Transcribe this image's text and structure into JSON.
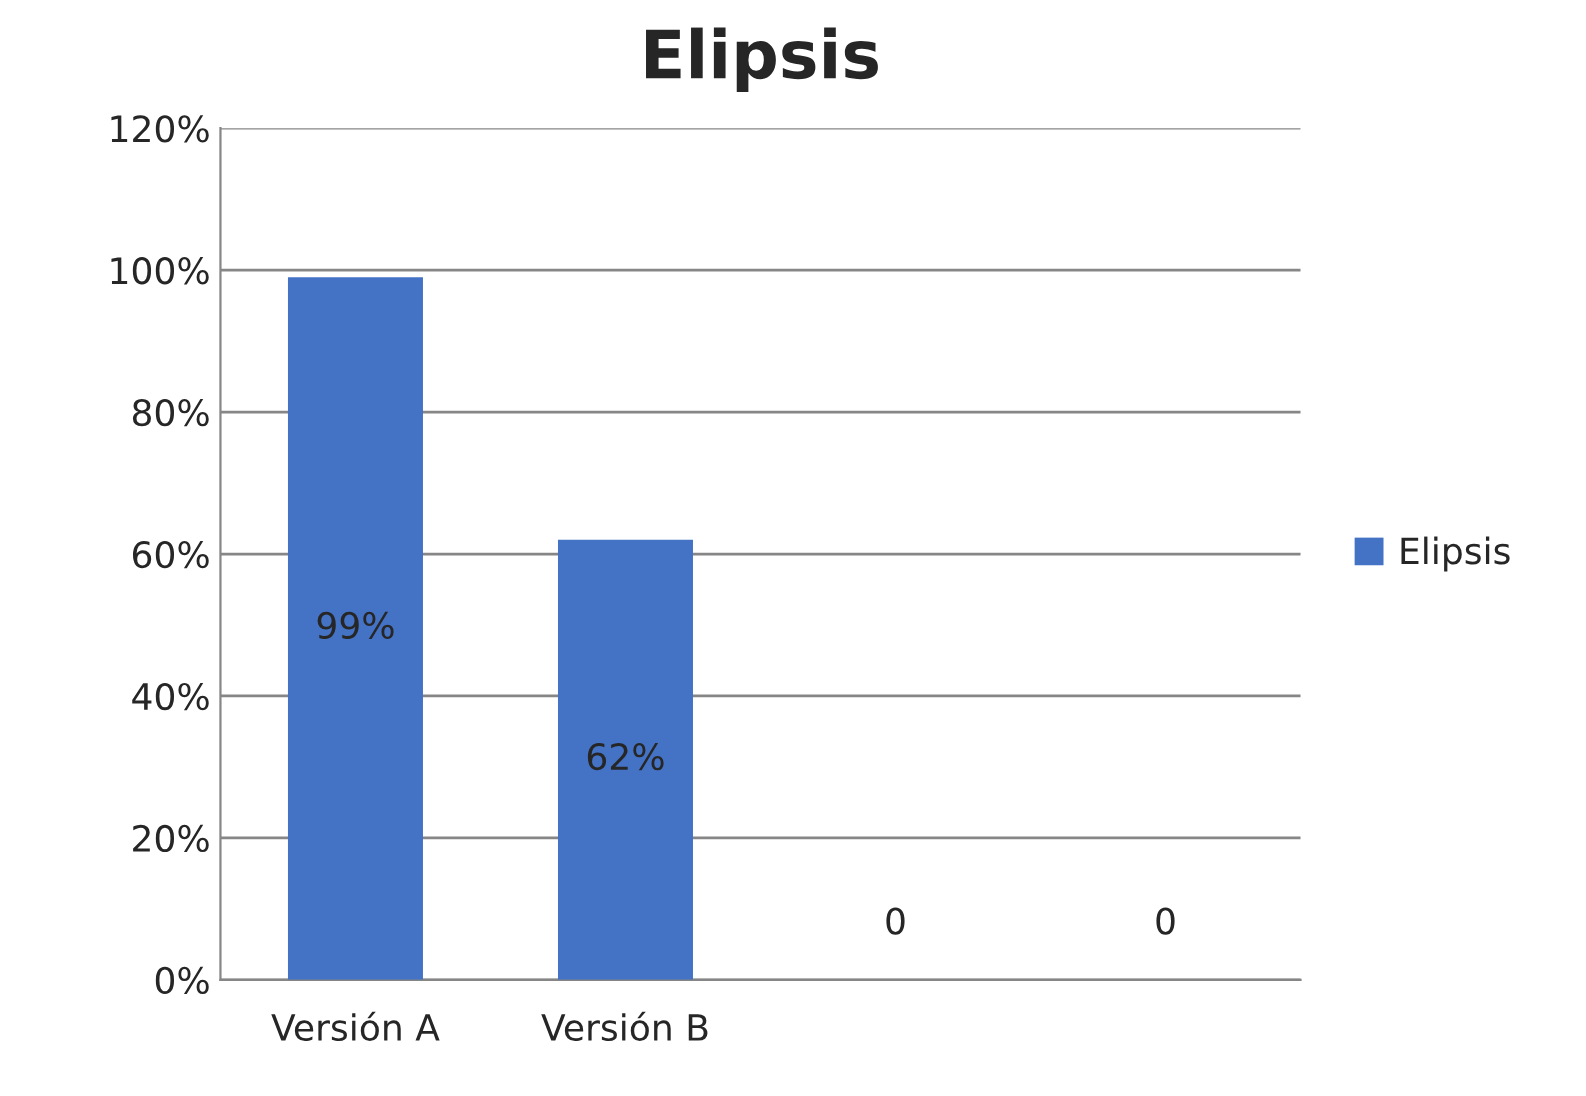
{
  "chart_data": {
    "type": "bar",
    "title": "Elipsis",
    "categories": [
      "Versión A",
      "Versión B",
      null,
      null
    ],
    "series": [
      {
        "name": "Elipsis",
        "color": "#4472c4",
        "values": [
          99,
          62,
          0,
          0
        ],
        "value_labels": [
          "99%",
          "62%",
          "0",
          "0"
        ]
      }
    ],
    "ylim": [
      0,
      120
    ],
    "yticks": [
      {
        "value": 0,
        "label": "0%"
      },
      {
        "value": 20,
        "label": "20%"
      },
      {
        "value": 40,
        "label": "40%"
      },
      {
        "value": 60,
        "label": "60%"
      },
      {
        "value": 80,
        "label": "80%"
      },
      {
        "value": 100,
        "label": "100%"
      },
      {
        "value": 120,
        "label": "120%"
      }
    ],
    "grid": "y",
    "legend": "right"
  }
}
